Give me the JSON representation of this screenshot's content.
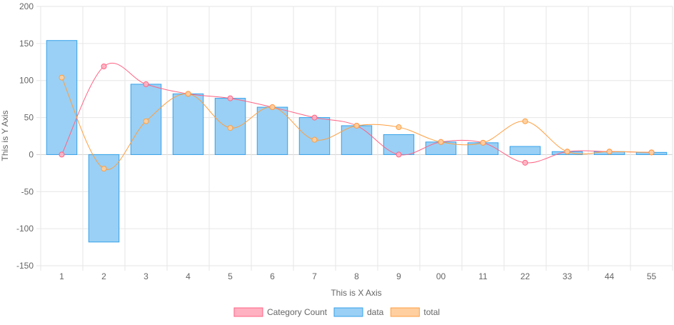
{
  "chart_data": {
    "type": "bar",
    "categories": [
      "1",
      "2",
      "3",
      "4",
      "5",
      "6",
      "7",
      "8",
      "9",
      "00",
      "11",
      "22",
      "33",
      "44",
      "55"
    ],
    "xlabel": "This is X Axis",
    "ylabel": "This is Y Axis",
    "ylim": [
      -150,
      200
    ],
    "yticks": [
      -150,
      -100,
      -50,
      0,
      50,
      100,
      150,
      200
    ],
    "grid": true,
    "legend_position": "bottom",
    "series": [
      {
        "name": "Category Count",
        "type": "line",
        "color": "#ff6384",
        "fill": "#ffb1c1",
        "values": [
          0,
          119,
          95,
          82,
          76,
          64,
          50,
          39,
          0,
          17,
          16,
          -11,
          4,
          4,
          3
        ]
      },
      {
        "name": "data",
        "type": "bar",
        "color": "#36a2eb",
        "fill": "#9ad0f5",
        "values": [
          154,
          -118,
          95,
          82,
          76,
          64,
          50,
          39,
          27,
          17,
          16,
          11,
          4,
          4,
          3
        ]
      },
      {
        "name": "total",
        "type": "line",
        "color": "#ff9f40",
        "fill": "#ffcf9f",
        "values": [
          104,
          -19,
          45,
          82,
          36,
          64,
          20,
          39,
          37,
          17,
          16,
          45,
          4,
          4,
          3
        ]
      }
    ]
  }
}
